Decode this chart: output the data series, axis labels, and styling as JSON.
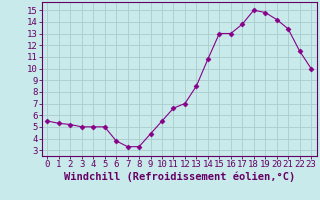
{
  "x": [
    0,
    1,
    2,
    3,
    4,
    5,
    6,
    7,
    8,
    9,
    10,
    11,
    12,
    13,
    14,
    15,
    16,
    17,
    18,
    19,
    20,
    21,
    22,
    23
  ],
  "y": [
    5.5,
    5.3,
    5.2,
    5.0,
    5.0,
    5.0,
    3.8,
    3.3,
    3.3,
    4.4,
    5.5,
    6.6,
    7.0,
    8.5,
    10.8,
    13.0,
    13.0,
    13.8,
    15.0,
    14.8,
    14.2,
    13.4,
    11.5,
    10.0
  ],
  "line_color": "#880088",
  "marker": "D",
  "marker_size": 2.5,
  "bg_color": "#c8eaea",
  "grid_color": "#aacccc",
  "xlabel": "Windchill (Refroidissement éolien,°C)",
  "xlabel_fontsize": 7.5,
  "ylabel_ticks": [
    3,
    4,
    5,
    6,
    7,
    8,
    9,
    10,
    11,
    12,
    13,
    14,
    15
  ],
  "xlim": [
    -0.5,
    23.5
  ],
  "ylim": [
    2.5,
    15.7
  ],
  "xtick_labels": [
    "0",
    "1",
    "2",
    "3",
    "4",
    "5",
    "6",
    "7",
    "8",
    "9",
    "10",
    "11",
    "12",
    "13",
    "14",
    "15",
    "16",
    "17",
    "18",
    "19",
    "20",
    "21",
    "22",
    "23"
  ],
  "tick_fontsize": 6.5,
  "spine_color": "#660066",
  "text_color": "#660066"
}
